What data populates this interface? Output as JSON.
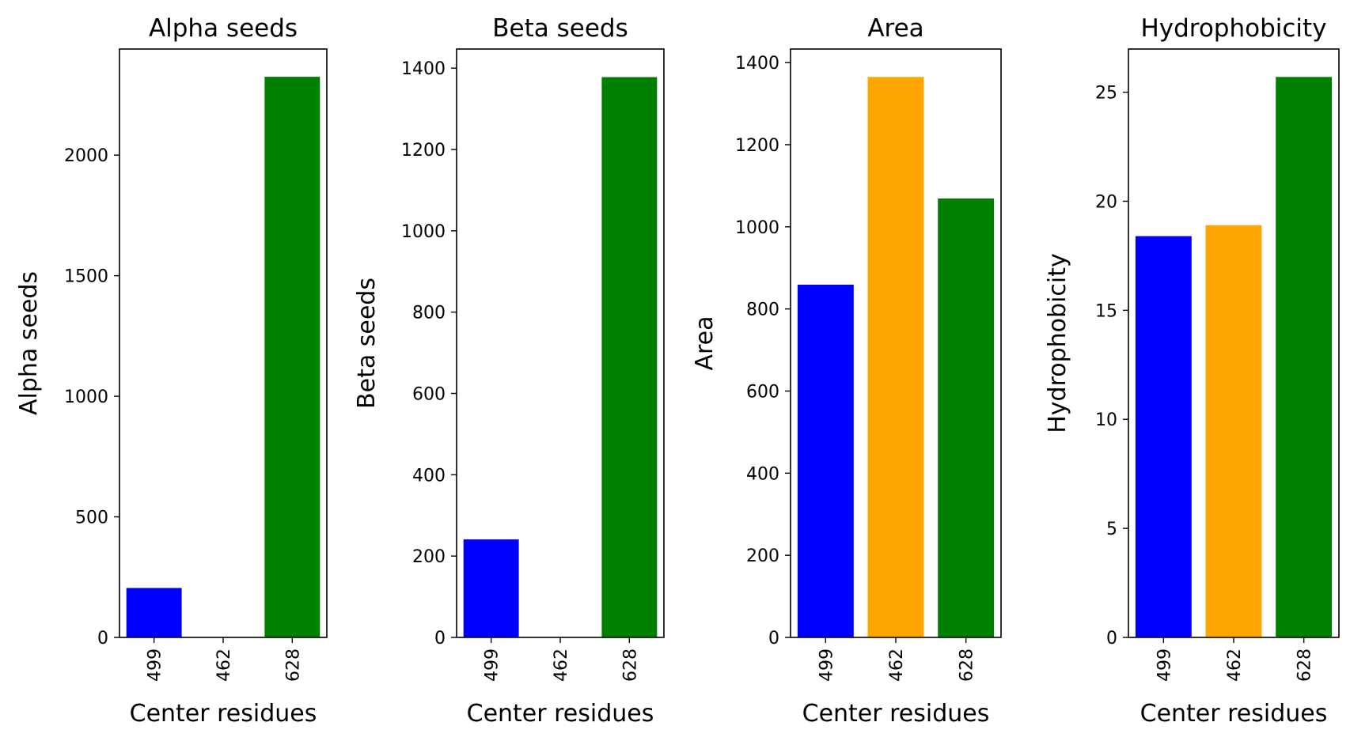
{
  "chart_data": [
    {
      "type": "bar",
      "title": "Alpha seeds",
      "xlabel": "Center residues",
      "ylabel": "Alpha seeds",
      "categories": [
        "499",
        "462",
        "628"
      ],
      "values": [
        205,
        0,
        2325
      ],
      "colors": [
        "#0000ff",
        "#ffa500",
        "#008000"
      ],
      "ylim": [
        0,
        2440
      ],
      "yticks": [
        0,
        500,
        1000,
        1500,
        2000
      ],
      "grid": false,
      "legend": "none"
    },
    {
      "type": "bar",
      "title": "Beta seeds",
      "xlabel": "Center residues",
      "ylabel": "Beta seeds",
      "categories": [
        "499",
        "462",
        "628"
      ],
      "values": [
        241,
        0,
        1378
      ],
      "colors": [
        "#0000ff",
        "#ffa500",
        "#008000"
      ],
      "ylim": [
        0,
        1447
      ],
      "yticks": [
        0,
        200,
        400,
        600,
        800,
        1000,
        1200,
        1400
      ],
      "grid": false,
      "legend": "none"
    },
    {
      "type": "bar",
      "title": "Area",
      "xlabel": "Center residues",
      "ylabel": "Area",
      "categories": [
        "499",
        "462",
        "628"
      ],
      "values": [
        859,
        1365,
        1069
      ],
      "colors": [
        "#0000ff",
        "#ffa500",
        "#008000"
      ],
      "ylim": [
        0,
        1433
      ],
      "yticks": [
        0,
        200,
        400,
        600,
        800,
        1000,
        1200,
        1400
      ],
      "grid": false,
      "legend": "none"
    },
    {
      "type": "bar",
      "title": "Hydrophobicity",
      "xlabel": "Center residues",
      "ylabel": "Hydrophobicity",
      "categories": [
        "499",
        "462",
        "628"
      ],
      "values": [
        18.4,
        18.9,
        25.7
      ],
      "colors": [
        "#0000ff",
        "#ffa500",
        "#008000"
      ],
      "ylim": [
        0,
        26.98
      ],
      "yticks": [
        0,
        5,
        10,
        15,
        20,
        25
      ],
      "grid": false,
      "legend": "none"
    }
  ]
}
